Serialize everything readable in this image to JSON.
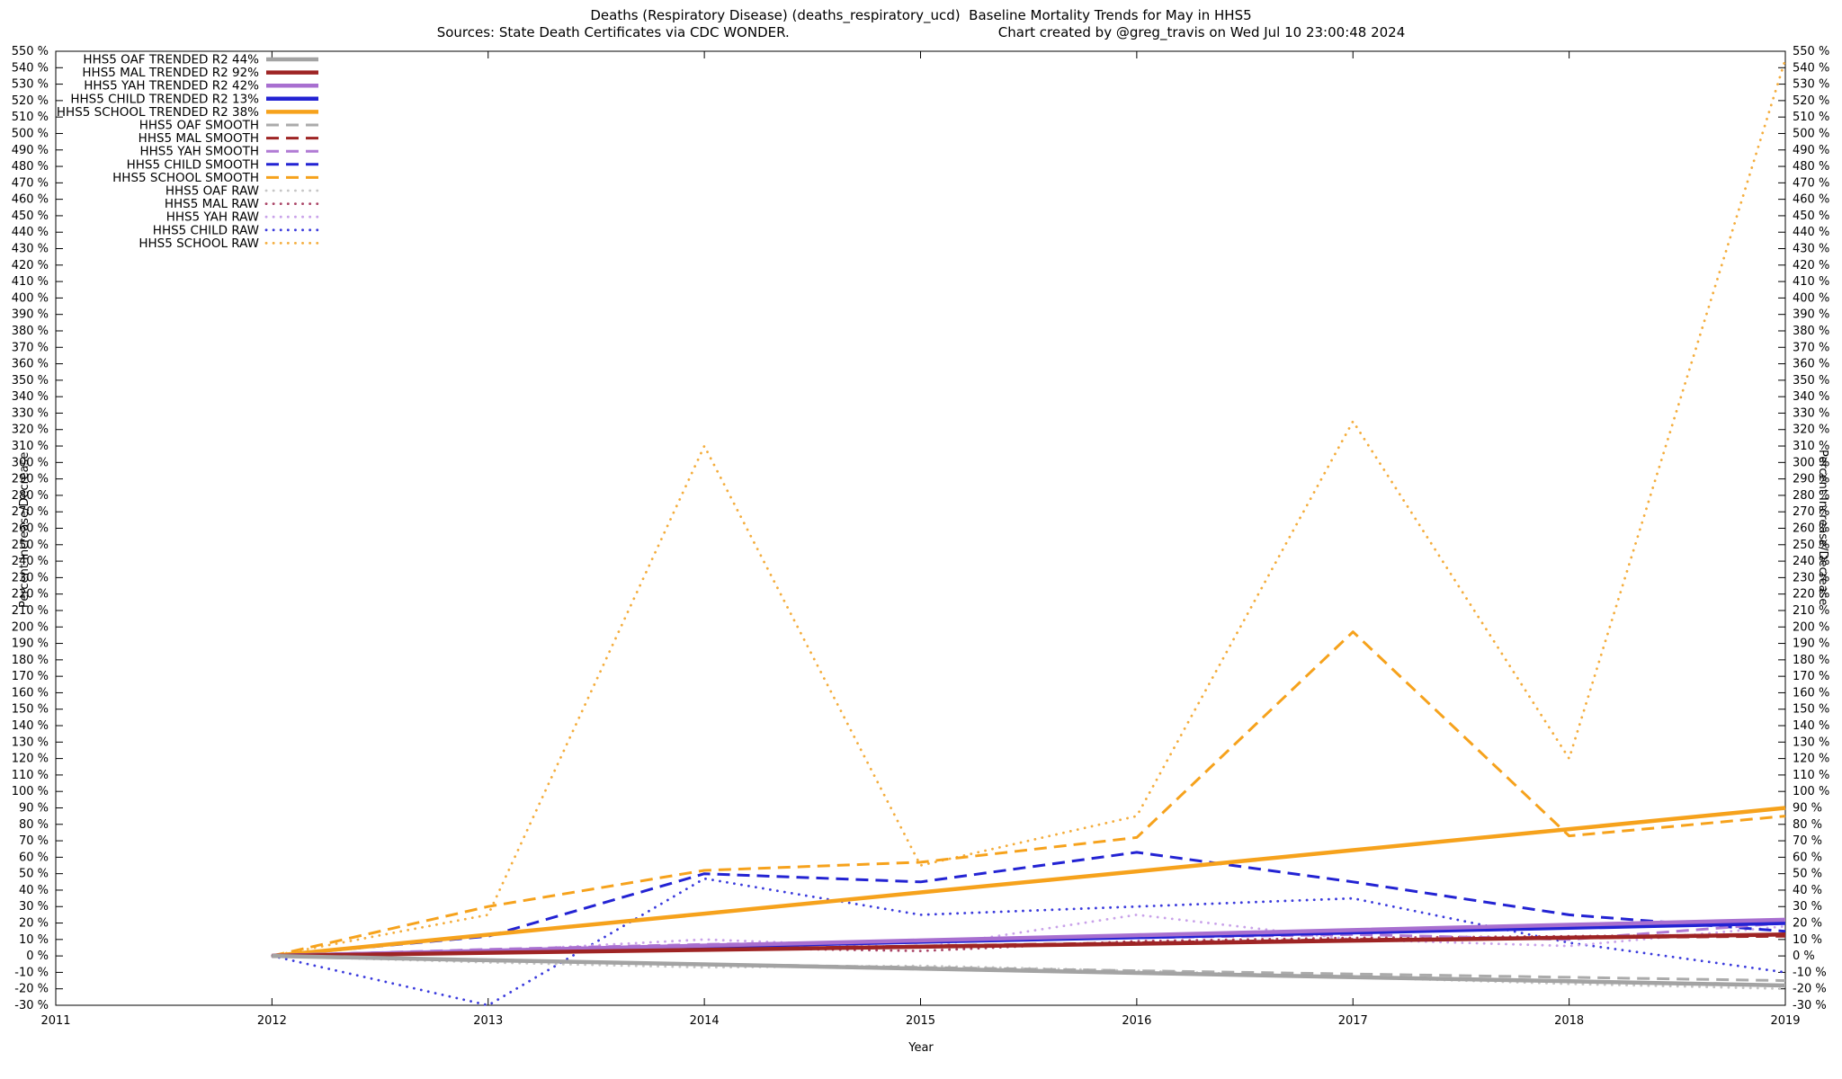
{
  "header": {
    "title": "Deaths (Respiratory Disease) (deaths_respiratory_ucd)  Baseline Mortality Trends for May in HHS5",
    "sources": "Sources: State Death Certificates via CDC WONDER.",
    "credit": "Chart created by @greg_travis on Wed Jul 10 23:00:48 2024"
  },
  "chart_data": {
    "type": "line",
    "title": "Deaths (Respiratory Disease) (deaths_respiratory_ucd)  Baseline Mortality Trends for May in HHS5",
    "xlabel": "Year",
    "ylabel_left": "Percent Increase/Decrease",
    "ylabel_right": "Percent Increase/Decrease",
    "xlim": [
      2011,
      2019
    ],
    "ylim": [
      -30,
      550
    ],
    "x_ticks": [
      2011,
      2012,
      2013,
      2014,
      2015,
      2016,
      2017,
      2018,
      2019
    ],
    "y_tick_step": 10,
    "y_tick_suffix": " %",
    "grid": false,
    "legend_position": "top-left",
    "x": [
      2012,
      2013,
      2014,
      2015,
      2016,
      2017,
      2018,
      2019
    ],
    "series": [
      {
        "id": "oaf-trended",
        "legend": "HHS5 OAF TRENDED R2  44%",
        "style": "solid",
        "color": "#a3a3a3",
        "values": [
          0,
          -2.6,
          -5.1,
          -7.7,
          -10.3,
          -12.9,
          -15.4,
          -18
        ]
      },
      {
        "id": "mal-trended",
        "legend": "HHS5 MAL TRENDED R2  92%",
        "style": "solid",
        "color": "#9e2424",
        "values": [
          0,
          1.9,
          3.7,
          5.6,
          7.4,
          9.3,
          11.1,
          13
        ]
      },
      {
        "id": "yah-trended",
        "legend": "HHS5 YAH TRENDED R2  42%",
        "style": "solid",
        "color": "#a86fd0",
        "values": [
          0,
          3.1,
          6.3,
          9.4,
          12.6,
          15.7,
          18.9,
          22
        ]
      },
      {
        "id": "child-trended",
        "legend": "HHS5 CHILD TRENDED R2  13%",
        "style": "solid",
        "color": "#2323d3",
        "values": [
          0,
          2.9,
          5.7,
          8.6,
          11.4,
          14.3,
          17.1,
          20
        ]
      },
      {
        "id": "school-trended",
        "legend": "HHS5 SCHOOL TRENDED R2  38%",
        "style": "solid",
        "color": "#f6a21c",
        "values": [
          0,
          12.9,
          25.7,
          38.6,
          51.4,
          64.3,
          77.1,
          90
        ]
      },
      {
        "id": "oaf-smooth",
        "legend": "HHS5 OAF SMOOTH",
        "style": "dashed",
        "color": "#ababab",
        "values": [
          0,
          -3,
          -5,
          -7,
          -9,
          -11,
          -13,
          -15
        ]
      },
      {
        "id": "mal-smooth",
        "legend": "HHS5 MAL SMOOTH",
        "style": "dashed",
        "color": "#9e2424",
        "values": [
          0,
          2,
          4,
          6,
          8,
          10,
          11,
          12
        ]
      },
      {
        "id": "yah-smooth",
        "legend": "HHS5 YAH SMOOTH",
        "style": "dashed",
        "color": "#b07ad4",
        "values": [
          0,
          4,
          7,
          9,
          11,
          13,
          10,
          20
        ]
      },
      {
        "id": "child-smooth",
        "legend": "HHS5 CHILD SMOOTH",
        "style": "dashed",
        "color": "#2323d3",
        "values": [
          0,
          12,
          50,
          45,
          63,
          45,
          25,
          15
        ]
      },
      {
        "id": "school-smooth",
        "legend": "HHS5 SCHOOL SMOOTH",
        "style": "dashed",
        "color": "#f6a21c",
        "values": [
          0,
          30,
          52,
          57,
          72,
          197,
          73,
          85
        ]
      },
      {
        "id": "oaf-raw",
        "legend": "HHS5 OAF RAW",
        "style": "dotted",
        "color": "#c6c6c6",
        "values": [
          0,
          -4,
          -7,
          -6,
          -9,
          -13,
          -17,
          -20
        ]
      },
      {
        "id": "mal-raw",
        "legend": "HHS5 MAL RAW",
        "style": "dotted",
        "color": "#aa4466",
        "values": [
          0,
          2,
          5,
          3,
          9,
          11,
          12,
          13
        ]
      },
      {
        "id": "yah-raw",
        "legend": "HHS5 YAH RAW",
        "style": "dotted",
        "color": "#c9a2ea",
        "values": [
          0,
          3,
          10,
          5,
          25,
          10,
          6,
          18
        ]
      },
      {
        "id": "child-raw",
        "legend": "HHS5 CHILD RAW",
        "style": "dotted",
        "color": "#3b3bdd",
        "values": [
          0,
          -30,
          47,
          25,
          30,
          35,
          8,
          -10
        ]
      },
      {
        "id": "school-raw",
        "legend": "HHS5 SCHOOL RAW",
        "style": "dotted",
        "color": "#f4ad3d",
        "values": [
          0,
          25,
          310,
          55,
          85,
          325,
          120,
          545
        ]
      }
    ]
  }
}
